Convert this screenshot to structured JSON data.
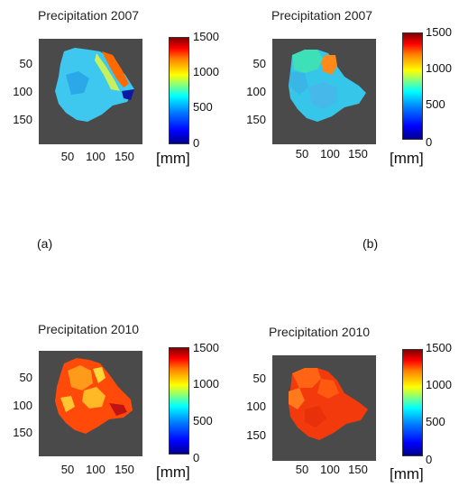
{
  "figure": {
    "panel_labels": [
      "(a)",
      "(b)"
    ],
    "colorbar": {
      "ticks": [
        "1500",
        "1000",
        "500",
        "0"
      ],
      "unit": "[mm]"
    },
    "panels": [
      {
        "title": "Precipitation 2007",
        "x_ticks": [
          "50",
          "100",
          "150"
        ],
        "y_ticks": [
          "50",
          "100",
          "150"
        ]
      },
      {
        "title": "Precipitation 2007",
        "x_ticks": [
          "50",
          "100",
          "150"
        ],
        "y_ticks": [
          "50",
          "100",
          "150"
        ]
      },
      {
        "title": "Precipitation 2010",
        "x_ticks": [
          "50",
          "100",
          "150"
        ],
        "y_ticks": [
          "50",
          "100",
          "150"
        ]
      },
      {
        "title": "Precipitation 2010",
        "x_ticks": [
          "50",
          "100",
          "150"
        ],
        "y_ticks": [
          "50",
          "100",
          "150"
        ]
      }
    ]
  },
  "chart_data": [
    {
      "type": "heatmap",
      "title": "Precipitation 2007",
      "xlim": [
        0,
        190
      ],
      "ylim": [
        0,
        190
      ],
      "colorbar_range": [
        0,
        1500
      ],
      "colorbar_unit": "[mm]",
      "description_values": {
        "typical": 450,
        "min": 50,
        "max": 1400
      }
    },
    {
      "type": "heatmap",
      "title": "Precipitation 2007",
      "xlim": [
        0,
        190
      ],
      "ylim": [
        0,
        190
      ],
      "colorbar_range": [
        0,
        1500
      ],
      "colorbar_unit": "[mm]",
      "description_values": {
        "typical": 500,
        "min": 450,
        "max": 1150
      }
    },
    {
      "type": "heatmap",
      "title": "Precipitation 2010",
      "xlim": [
        0,
        190
      ],
      "ylim": [
        0,
        190
      ],
      "colorbar_range": [
        0,
        1500
      ],
      "colorbar_unit": "[mm]",
      "description_values": {
        "typical": 1300,
        "min": 1150,
        "max": 1450
      }
    },
    {
      "type": "heatmap",
      "title": "Precipitation 2010",
      "xlim": [
        0,
        190
      ],
      "ylim": [
        0,
        190
      ],
      "colorbar_range": [
        0,
        1500
      ],
      "colorbar_unit": "[mm]",
      "description_values": {
        "typical": 1380,
        "min": 1300,
        "max": 1450
      }
    }
  ]
}
